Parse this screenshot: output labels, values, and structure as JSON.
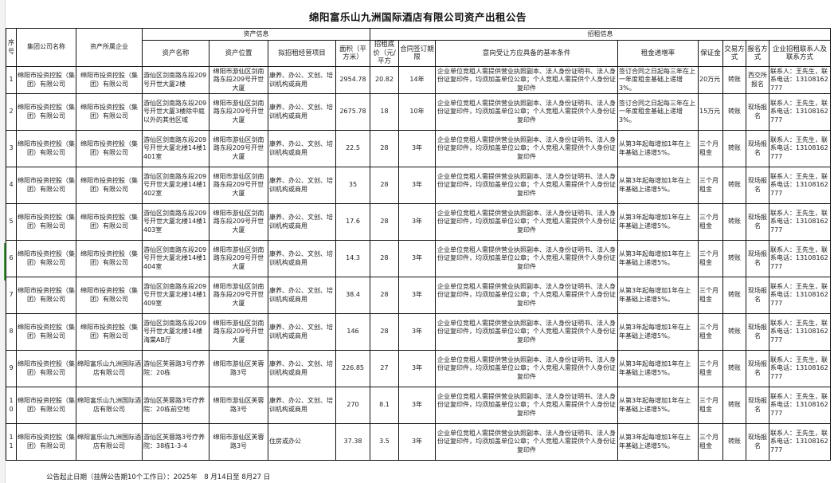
{
  "title": "绵阳富乐山九洲国际酒店有限公司资产出租公告",
  "header": {
    "index": "序号",
    "group_company": "集团公司名称",
    "owner_company": "资产所属企业",
    "asset_info": "资产信息",
    "leasing_info": "招租信息",
    "asset_name": "资产名称",
    "asset_location": "资产位置",
    "intended_use": "拟招租经营项目",
    "area": "面积（平方米）",
    "base_price": "招租底价（元/平方",
    "term": "合同签订期限",
    "conditions": "意向受让方应具备的基本条件",
    "rent_increase": "租金递增率",
    "deposit": "保证金",
    "transaction": "交易方式",
    "registration": "报名方式",
    "contact": "企业招租联系人及联系方式"
  },
  "rows": [
    {
      "no": "1",
      "group": "绵阳市投资控股（集团）有限公司",
      "owner": "绵阳市投资控股（集团）有限公司",
      "name": "游仙区剑南路东段209号开世大厦2楼",
      "location": "绵阳市游仙区剑南路东段209号开世大厦",
      "use": "康养、办公、文创、培训机构或商用",
      "area": "2954.78",
      "price": "20.82",
      "term": "14年",
      "cond": "企业单位竞租人需提供营业执照副本、法人身份证明书、法人身份证复印件，均须加盖单位公章；个人竞租人需提供个人身份证复印件",
      "increase": "签订合同之日起每三年在上一年度租金基础上递增3%。",
      "deposit": "20万元",
      "trans": "转账",
      "reg": "西交所报名",
      "contact": "联系人：王先生，联系电话：13108162777"
    },
    {
      "no": "2",
      "group": "绵阳市投资控股（集团）有限公司",
      "owner": "绵阳市投资控股（集团）有限公司",
      "name": "游仙区剑南路东段209号开世大厦3楼除中庭以外的其他区域",
      "location": "绵阳市游仙区剑南路东段209号开世大厦",
      "use": "康养、办公、文创、培训机构或商用",
      "area": "2675.78",
      "price": "18",
      "term": "10年",
      "cond": "企业单位竞租人需提供营业执照副本、法人身份证明书、法人身份证复印件，均须加盖单位公章；个人竞租人需提供个人身份证复印件",
      "increase": "签订合同之日起每三年在上一年度租金基础上递增3%。",
      "deposit": "15万元",
      "trans": "转账",
      "reg": "现场报名",
      "contact": "联系人：王先生，联系电话：13108162777"
    },
    {
      "no": "3",
      "group": "绵阳市投资控股（集团）有限公司",
      "owner": "绵阳市投资控股（集团）有限公司",
      "name": "游仙区剑南路东段209号开世大厦北楼14楼1401室",
      "location": "绵阳市游仙区剑南路东段209号开世大厦",
      "use": "康养、办公、文创、培训机构或商用",
      "area": "22.5",
      "price": "28",
      "term": "3年",
      "cond": "企业单位竞租人需提供营业执照副本、法人身份证明书、法人身份证复印件，均须加盖单位公章；个人竞租人需提供个人身份证复印件",
      "increase": "从第3年起每增加1年在上年基础上递增5%。",
      "deposit": "三个月租金",
      "trans": "转账",
      "reg": "现场报名",
      "contact": "联系人：王先生，联系电话：13108162777"
    },
    {
      "no": "4",
      "group": "绵阳市投资控股（集团）有限公司",
      "owner": "绵阳市投资控股（集团）有限公司",
      "name": "游仙区剑南路东段209号开世大厦北楼14楼1402室",
      "location": "绵阳市游仙区剑南路东段209号开世大厦",
      "use": "康养、办公、文创、培训机构或商用",
      "area": "35",
      "price": "28",
      "term": "3年",
      "cond": "企业单位竞租人需提供营业执照副本、法人身份证明书、法人身份证复印件，均须加盖单位公章；个人竞租人需提供个人身份证复印件",
      "increase": "从第3年起每增加1年在上年基础上递增5%。",
      "deposit": "三个月租金",
      "trans": "转账",
      "reg": "现场报名",
      "contact": "联系人：王先生，联系电话：13108162777"
    },
    {
      "no": "5",
      "group": "绵阳市投资控股（集团）有限公司",
      "owner": "绵阳市投资控股（集团）有限公司",
      "name": "游仙区剑南路东段209号开世大厦北楼14楼1403室",
      "location": "绵阳市游仙区剑南路东段209号开世大厦",
      "use": "康养、办公、文创、培训机构或商用",
      "area": "17.6",
      "price": "28",
      "term": "3年",
      "cond": "企业单位竞租人需提供营业执照副本、法人身份证明书、法人身份证复印件，均须加盖单位公章；个人竞租人需提供个人身份证复印件",
      "increase": "从第3年起每增加1年在上年基础上递增5%。",
      "deposit": "三个月租金",
      "trans": "转账",
      "reg": "现场报名",
      "contact": "联系人：王先生，联系电话：13108162777"
    },
    {
      "no": "6",
      "group": "绵阳市投资控股（集团）有限公司",
      "owner": "绵阳市投资控股（集团）有限公司",
      "name": "游仙区剑南路东段209号开世大厦北楼14楼1404室",
      "location": "绵阳市游仙区剑南路东段209号开世大厦",
      "use": "康养、办公、文创、培训机构或商用",
      "area": "14.3",
      "price": "28",
      "term": "3年",
      "cond": "企业单位竞租人需提供营业执照副本、法人身份证明书、法人身份证复印件，均须加盖单位公章；个人竞租人需提供个人身份证复印件",
      "increase": "从第3年起每增加1年在上年基础上递增5%。",
      "deposit": "三个月租金",
      "trans": "转账",
      "reg": "现场报名",
      "contact": "联系人：王先生，联系电话：13108162777"
    },
    {
      "no": "7",
      "group": "绵阳市投资控股（集团）有限公司",
      "owner": "绵阳市投资控股（集团）有限公司",
      "name": "游仙区剑南路东段209号开世大厦北楼14楼1409室",
      "location": "绵阳市游仙区剑南路东段209号开世大厦",
      "use": "康养、办公、文创、培训机构或商用",
      "area": "38.4",
      "price": "28",
      "term": "3年",
      "cond": "企业单位竞租人需提供营业执照副本、法人身份证明书、法人身份证复印件，均须加盖单位公章；个人竞租人需提供个人身份证复印件",
      "increase": "从第3年起每增加1年在上年基础上递增5%。",
      "deposit": "三个月租金",
      "trans": "转账",
      "reg": "现场报名",
      "contact": "联系人：王先生，联系电话：13108162777"
    },
    {
      "no": "8",
      "group": "绵阳市投资控股（集团）有限公司",
      "owner": "绵阳市投资控股（集团）有限公司",
      "name": "游仙区剑南路东段209号开世大厦北楼14楼海棠AB厅",
      "location": "绵阳市游仙区剑南路东段209号开世大厦",
      "use": "康养、办公、文创、培训机构或商用",
      "area": "146",
      "price": "28",
      "term": "3年",
      "cond": "企业单位竞租人需提供营业执照副本、法人身份证明书、法人身份证复印件，均须加盖单位公章；个人竞租人需提供个人身份证复印件",
      "increase": "从第3年起每增加1年在上年基础上递增5%。",
      "deposit": "三个月租金",
      "trans": "转账",
      "reg": "现场报名",
      "contact": "联系人：王先生，联系电话：13108162777"
    },
    {
      "no": "9",
      "group": "绵阳市投资控股（集团）有限公司",
      "owner": "绵阳富乐山九洲国际酒店有限公司",
      "name": "游仙区芙蓉路3号疗养院：20栋",
      "location": "绵阳市游仙区芙蓉路3号",
      "use": "康养、办公、文创、培训机构或商用",
      "area": "226.85",
      "price": "27",
      "term": "3年",
      "cond": "企业单位竞租人需提供营业执照副本、法人身份证明书、法人身份证复印件，均须加盖单位公章；个人竞租人需提供个人身份证复印件",
      "increase": "从第3年起每增加1年在上年基础上递增5%。",
      "deposit": "三个月租金",
      "trans": "转账",
      "reg": "现场报名",
      "contact": "联系人：王先生，联系电话：13108162777"
    },
    {
      "no": "10",
      "group": "绵阳市投资控股（集团）有限公司",
      "owner": "绵阳富乐山九洲国际酒店有限公司",
      "name": "游仙区芙蓉路3号疗养院：20栋前空地",
      "location": "绵阳市游仙区芙蓉路3号",
      "use": "康养、办公、文创、培训机构或商用",
      "area": "270",
      "price": "8.1",
      "term": "3年",
      "cond": "企业单位竞租人需提供营业执照副本、法人身份证明书、法人身份证复印件，均须加盖单位公章；个人竞租人需提供个人身份证复印件",
      "increase": "从第3年起每增加1年在上年基础上递增5%。",
      "deposit": "三个月租金",
      "trans": "转账",
      "reg": "现场报名",
      "contact": "联系人：王先生，联系电话：13108162777"
    },
    {
      "no": "11",
      "group": "绵阳市投资控股（集团）有限公司",
      "owner": "绵阳富乐山九洲国际酒店有限公司",
      "name": "游仙区芙蓉路3号疗养院：38栋1-3-4",
      "location": "绵阳市游仙区芙蓉路3号",
      "use": "住房或办公",
      "area": "37.38",
      "price": "3.5",
      "term": "3年",
      "cond": "企业单位竞租人需提供营业执照副本、法人身份证明书、法人身份证复印件，均须加盖单位公章；个人竞租人需提供个人身份证复印件",
      "increase": "从第3年起每增加1年在上年基础上递增5%。",
      "deposit": "三个月租金",
      "trans": "转账",
      "reg": "现场报名",
      "contact": "联系人：王先生，联系电话：13108162777"
    }
  ],
  "footer": "公告起止日期（挂牌公告期10个工作日）：2025年　8 月14日至 8月27 日"
}
